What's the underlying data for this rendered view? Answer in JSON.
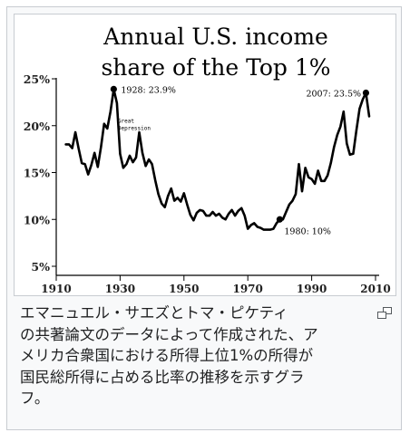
{
  "chart_data": {
    "type": "line",
    "title": "Annual U.S. income share of the Top 1%",
    "title_lines": [
      "Annual U.S. income",
      "share of the Top 1%"
    ],
    "xlabel": "",
    "ylabel": "",
    "xlim": [
      1910,
      2010
    ],
    "ylim": [
      5,
      25
    ],
    "x_ticks": [
      "1910",
      "1930",
      "1950",
      "1970",
      "1990",
      "2010"
    ],
    "y_ticks": [
      "5%",
      "10%",
      "15%",
      "20%",
      "25%"
    ],
    "grid": false,
    "annotations": {
      "peak_1928": "1928: 23.9%",
      "great_depression_line1": "Great",
      "great_depression_line2": "Depression",
      "low_1980": "1980: 10%",
      "peak_2007": "2007: 23.5%"
    },
    "x": [
      1913,
      1914,
      1915,
      1916,
      1917,
      1918,
      1919,
      1920,
      1921,
      1922,
      1923,
      1924,
      1925,
      1926,
      1927,
      1928,
      1929,
      1930,
      1931,
      1932,
      1933,
      1934,
      1935,
      1936,
      1937,
      1938,
      1939,
      1940,
      1941,
      1942,
      1943,
      1944,
      1945,
      1946,
      1947,
      1948,
      1949,
      1950,
      1951,
      1952,
      1953,
      1954,
      1955,
      1956,
      1957,
      1958,
      1959,
      1960,
      1961,
      1962,
      1963,
      1964,
      1965,
      1966,
      1967,
      1968,
      1969,
      1970,
      1971,
      1972,
      1973,
      1974,
      1975,
      1976,
      1977,
      1978,
      1979,
      1980,
      1981,
      1982,
      1983,
      1984,
      1985,
      1986,
      1987,
      1988,
      1989,
      1990,
      1991,
      1992,
      1993,
      1994,
      1995,
      1996,
      1997,
      1998,
      1999,
      2000,
      2001,
      2002,
      2003,
      2004,
      2005,
      2006,
      2007,
      2008
    ],
    "values": [
      18.0,
      18.0,
      17.6,
      19.3,
      17.6,
      16.0,
      15.9,
      14.8,
      15.8,
      17.1,
      15.6,
      17.7,
      20.2,
      19.7,
      21.5,
      23.9,
      22.4,
      17.0,
      15.5,
      15.9,
      16.8,
      16.1,
      16.6,
      19.3,
      17.1,
      15.7,
      16.4,
      15.9,
      14.2,
      12.7,
      11.7,
      11.3,
      12.5,
      13.3,
      12.0,
      12.3,
      11.9,
      12.8,
      11.6,
      10.5,
      9.9,
      10.7,
      11.0,
      10.9,
      10.4,
      10.4,
      10.8,
      10.4,
      10.6,
      10.2,
      10.0,
      10.6,
      11.0,
      10.4,
      10.9,
      11.2,
      10.4,
      9.0,
      9.4,
      9.6,
      9.2,
      9.1,
      8.9,
      8.9,
      8.9,
      9.0,
      9.6,
      10.0,
      10.0,
      10.8,
      11.6,
      12.0,
      12.7,
      15.9,
      13.0,
      15.5,
      14.5,
      14.3,
      13.8,
      15.2,
      14.1,
      14.1,
      14.7,
      16.0,
      17.7,
      19.0,
      19.9,
      21.5,
      18.1,
      16.9,
      17.0,
      19.5,
      21.8,
      22.8,
      23.5,
      21.0
    ]
  },
  "caption": {
    "lines": [
      "エマニュエル・サエズとトマ・ピケティ",
      "の共著論文のデータによって作成された、ア",
      "メリカ合衆国における所得上位1%の所得が",
      "国民総所得に占める比率の推移を示すグラ",
      "フ。"
    ],
    "enlarge_icon": "magnify-icon"
  },
  "colors": {
    "frame_border": "#c8ccd1",
    "thumb_bg": "#f8f9fa",
    "line": "#000000",
    "caption_text": "#202122"
  }
}
